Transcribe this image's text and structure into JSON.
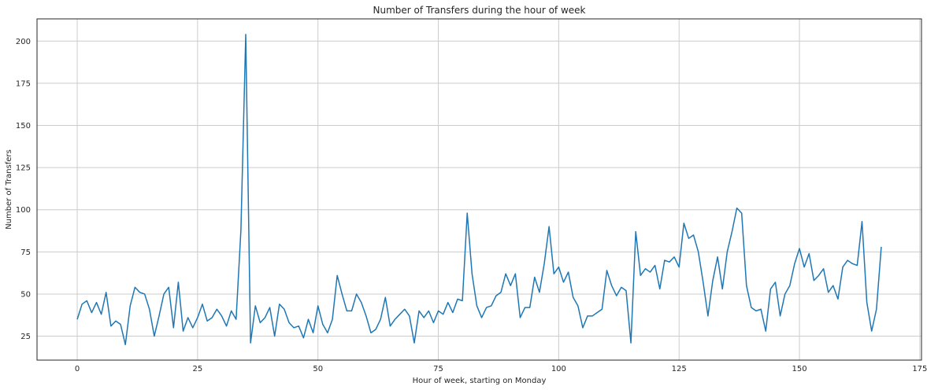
{
  "chart_data": {
    "type": "line",
    "title": "Number of Transfers during the hour of week",
    "xlabel": "Hour of week, starting on Monday",
    "ylabel": "Number of Transfers",
    "xlim": [
      -8.35,
      175.35
    ],
    "ylim": [
      10.8,
      213.2
    ],
    "xticks": [
      0,
      25,
      50,
      75,
      100,
      125,
      150,
      175
    ],
    "yticks": [
      25,
      50,
      75,
      100,
      125,
      150,
      175,
      200
    ],
    "grid": true,
    "color": "#1f77b4",
    "series": [
      {
        "values": [
          35,
          44,
          46,
          39,
          45,
          38,
          51,
          31,
          34,
          32,
          20,
          43,
          54,
          51,
          50,
          41,
          25,
          37,
          50,
          54,
          30,
          57,
          28,
          36,
          30,
          36,
          44,
          34,
          36,
          41,
          37,
          31,
          40,
          35,
          88,
          204,
          21,
          43,
          33,
          36,
          42,
          25,
          44,
          41,
          33,
          30,
          31,
          24,
          35,
          27,
          43,
          32,
          27,
          35,
          61,
          50,
          40,
          40,
          50,
          45,
          37,
          27,
          29,
          35,
          48,
          31,
          35,
          38,
          41,
          37,
          21,
          40,
          36,
          40,
          33,
          40,
          38,
          45,
          39,
          47,
          46,
          98,
          62,
          43,
          36,
          42,
          43,
          49,
          51,
          62,
          55,
          62,
          36,
          42,
          42,
          60,
          51,
          68,
          90,
          62,
          66,
          57,
          63,
          48,
          43,
          30,
          37,
          37,
          39,
          41,
          64,
          55,
          49,
          54,
          52,
          21,
          87,
          61,
          65,
          63,
          67,
          53,
          70,
          69,
          72,
          66,
          92,
          83,
          85,
          75,
          57,
          37,
          58,
          72,
          53,
          75,
          87,
          101,
          98,
          55,
          42,
          40,
          41,
          28,
          53,
          57,
          37,
          50,
          55,
          68,
          77,
          66,
          74,
          58,
          61,
          65,
          51,
          55,
          47,
          66,
          70,
          68,
          67,
          93,
          45,
          28,
          41,
          78
        ]
      }
    ]
  }
}
